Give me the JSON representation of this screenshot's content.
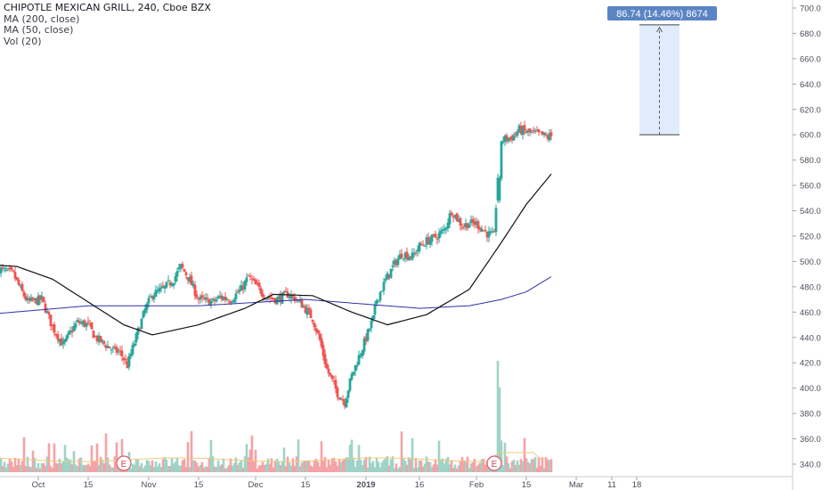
{
  "header": {
    "title": "CHIPOTLE MEXICAN GRILL, 240, Cboe BZX",
    "indicators": [
      "MA (200, close)",
      "MA (50, close)",
      "Vol (20)"
    ]
  },
  "measure": {
    "label": "86.74 (14.46%) 8674",
    "from_price": 600,
    "to_price": 686.74,
    "color": "#5b84c4"
  },
  "colors": {
    "up": "#26a69a",
    "down": "#ef5350",
    "vol_up": "#9fd3c7",
    "vol_down": "#f4a3a6",
    "ma200": "#3030a8",
    "ma50": "#111111",
    "vol_ma": "#f5c97a"
  },
  "earnings": [
    {
      "label": "E",
      "date": "Oct 25"
    },
    {
      "label": "E",
      "date": "Feb 6"
    }
  ],
  "chart_data": {
    "type": "candlestick",
    "title": "CHIPOTLE MEXICAN GRILL, 240, Cboe BZX",
    "xlabel": "",
    "ylabel": "",
    "ylim": [
      330,
      705
    ],
    "x_ticks": [
      "Oct",
      "15",
      "Nov",
      "15",
      "Dec",
      "15",
      "2019",
      "16",
      "Feb",
      "15",
      "Mar",
      "11",
      "18"
    ],
    "y_ticks": [
      340,
      360,
      380,
      400,
      420,
      440,
      460,
      480,
      500,
      520,
      540,
      560,
      580,
      600,
      620,
      640,
      660,
      680,
      700
    ],
    "grid": false,
    "price_path": [
      [
        "Sep 20",
        494
      ],
      [
        "Sep 24",
        490
      ],
      [
        "Sep 26",
        478
      ],
      [
        "Sep 28",
        468
      ],
      [
        "Oct 2",
        470
      ],
      [
        "Oct 5",
        448
      ],
      [
        "Oct 8",
        434
      ],
      [
        "Oct 10",
        444
      ],
      [
        "Oct 12",
        452
      ],
      [
        "Oct 15",
        450
      ],
      [
        "Oct 17",
        440
      ],
      [
        "Oct 19",
        436
      ],
      [
        "Oct 22",
        430
      ],
      [
        "Oct 24",
        428
      ],
      [
        "Oct 26",
        418
      ],
      [
        "Oct 29",
        445
      ],
      [
        "Oct 31",
        462
      ],
      [
        "Nov 2",
        474
      ],
      [
        "Nov 5",
        478
      ],
      [
        "Nov 8",
        486
      ],
      [
        "Nov 10",
        496
      ],
      [
        "Nov 12",
        488
      ],
      [
        "Nov 15",
        470
      ],
      [
        "Nov 19",
        468
      ],
      [
        "Nov 21",
        472
      ],
      [
        "Nov 24",
        470
      ],
      [
        "Nov 27",
        478
      ],
      [
        "Nov 29",
        488
      ],
      [
        "Dec 1",
        481
      ],
      [
        "Dec 4",
        472
      ],
      [
        "Dec 7",
        470
      ],
      [
        "Dec 10",
        474
      ],
      [
        "Dec 12",
        471
      ],
      [
        "Dec 14",
        466
      ],
      [
        "Dec 17",
        455
      ],
      [
        "Dec 19",
        438
      ],
      [
        "Dec 21",
        415
      ],
      [
        "Dec 24",
        396
      ],
      [
        "Dec 26",
        389
      ],
      [
        "Dec 28",
        410
      ],
      [
        "Dec 31",
        432
      ],
      [
        "Jan 3",
        455
      ],
      [
        "Jan 4",
        470
      ],
      [
        "Jan 7",
        488
      ],
      [
        "Jan 9",
        498
      ],
      [
        "Jan 11",
        506
      ],
      [
        "Jan 14",
        504
      ],
      [
        "Jan 16",
        512
      ],
      [
        "Jan 18",
        516
      ],
      [
        "Jan 21",
        520
      ],
      [
        "Jan 23",
        525
      ],
      [
        "Jan 25",
        540
      ],
      [
        "Jan 28",
        528
      ],
      [
        "Jan 30",
        530
      ],
      [
        "Feb 1",
        530
      ],
      [
        "Feb 4",
        522
      ],
      [
        "Feb 6",
        520
      ],
      [
        "Feb 7",
        568
      ],
      [
        "Feb 8",
        596
      ],
      [
        "Feb 11",
        598
      ],
      [
        "Feb 13",
        604
      ],
      [
        "Feb 15",
        602
      ],
      [
        "Feb 19",
        600
      ],
      [
        "Feb 21",
        598
      ],
      [
        "Feb 22",
        599
      ]
    ],
    "series": [
      {
        "name": "MA (200, close)",
        "points": [
          [
            "Sep 20",
            459
          ],
          [
            "Oct 15",
            465
          ],
          [
            "Nov 15",
            465
          ],
          [
            "Dec 15",
            470
          ],
          [
            "Jan 16",
            463
          ],
          [
            "Jan 30",
            465
          ],
          [
            "Feb 8",
            470
          ],
          [
            "Feb 15",
            476
          ],
          [
            "Feb 22",
            488
          ]
        ]
      },
      {
        "name": "MA (50, close)",
        "points": [
          [
            "Sep 20",
            497
          ],
          [
            "Sep 25",
            496
          ],
          [
            "Oct 5",
            486
          ],
          [
            "Oct 15",
            468
          ],
          [
            "Oct 25",
            450
          ],
          [
            "Nov 2",
            442
          ],
          [
            "Nov 15",
            450
          ],
          [
            "Nov 28",
            463
          ],
          [
            "Dec 6",
            474
          ],
          [
            "Dec 17",
            473
          ],
          [
            "Dec 28",
            460
          ],
          [
            "Jan 7",
            450
          ],
          [
            "Jan 18",
            458
          ],
          [
            "Jan 30",
            478
          ],
          [
            "Feb 8",
            515
          ],
          [
            "Feb 15",
            545
          ],
          [
            "Feb 22",
            569
          ]
        ]
      }
    ]
  }
}
